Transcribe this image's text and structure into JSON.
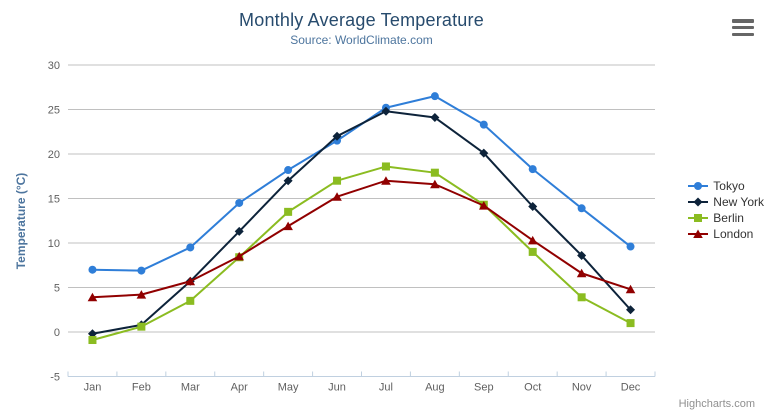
{
  "header": {
    "title": "Monthly Average Temperature",
    "subtitle": "Source: WorldClimate.com"
  },
  "context_menu": {
    "icon": "hamburger-menu-icon",
    "bars": 3
  },
  "credits": {
    "text": "Highcharts.com"
  },
  "colors": {
    "title": "#274b6d",
    "subtitle": "#4d759e",
    "axis_title": "#4d759e",
    "axis_labels": "#606060",
    "grid": "#c0c0c0",
    "axis_line": "#c0d0e0",
    "legend_text": "#333333",
    "credits": "#909090",
    "menu_icon": "#666666",
    "background": "#ffffff"
  },
  "chart_data": {
    "type": "line",
    "title": "Monthly Average Temperature",
    "subtitle": "Source: WorldClimate.com",
    "categories": [
      "Jan",
      "Feb",
      "Mar",
      "Apr",
      "May",
      "Jun",
      "Jul",
      "Aug",
      "Sep",
      "Oct",
      "Nov",
      "Dec"
    ],
    "xlabel": "",
    "ylabel": "Temperature (°C)",
    "ylim": [
      -5,
      30
    ],
    "ytick_interval": 5,
    "grid": true,
    "legend_position": "right",
    "series": [
      {
        "name": "Tokyo",
        "color": "#2f7ed8",
        "marker": "circle",
        "values": [
          7.0,
          6.9,
          9.5,
          14.5,
          18.2,
          21.5,
          25.2,
          26.5,
          23.3,
          18.3,
          13.9,
          9.6
        ]
      },
      {
        "name": "New York",
        "color": "#0d233a",
        "marker": "diamond",
        "values": [
          -0.2,
          0.8,
          5.7,
          11.3,
          17.0,
          22.0,
          24.8,
          24.1,
          20.1,
          14.1,
          8.6,
          2.5
        ]
      },
      {
        "name": "Berlin",
        "color": "#8bbc21",
        "marker": "square",
        "values": [
          -0.9,
          0.6,
          3.5,
          8.4,
          13.5,
          17.0,
          18.6,
          17.9,
          14.3,
          9.0,
          3.9,
          1.0
        ]
      },
      {
        "name": "London",
        "color": "#910000",
        "marker": "triangle",
        "values": [
          3.9,
          4.2,
          5.7,
          8.5,
          11.9,
          15.2,
          17.0,
          16.6,
          14.2,
          10.3,
          6.6,
          4.8
        ]
      }
    ]
  }
}
